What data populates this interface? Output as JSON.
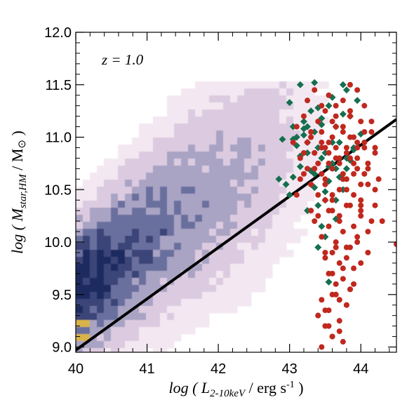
{
  "chart_data": {
    "type": "scatter",
    "annotation": "z = 1.0",
    "xlabel": {
      "prefix": "log ( ",
      "symbol": "L",
      "subscript": "2-10keV",
      "unit": " / erg s",
      "superscript": "-1",
      "suffix": " )"
    },
    "ylabel": {
      "prefix": "log ( ",
      "symbol": "M",
      "subscript": "star,HM",
      "unit": " / M",
      "sun": "⊙",
      "suffix": " )"
    },
    "xlim": [
      40.0,
      44.5
    ],
    "ylim": [
      8.95,
      12.0
    ],
    "x_ticks": [
      "40",
      "41",
      "42",
      "43",
      "44"
    ],
    "y_ticks": [
      "9.0",
      "9.5",
      "10.0",
      "10.5",
      "11.0",
      "11.5",
      "12.0"
    ],
    "relation_line": {
      "x": [
        40.0,
        44.5
      ],
      "y": [
        8.97,
        11.17
      ],
      "color": "#000000"
    },
    "density_colors": [
      "#f3e8f1",
      "#dccbe0",
      "#a9a3c4",
      "#6b6f9e",
      "#3a4478",
      "#1c2960",
      "#d8b34a"
    ],
    "green_diamonds": {
      "color": "#156f4f",
      "x": [
        42.9,
        42.95,
        43.0,
        43.05,
        43.1,
        43.15,
        43.2,
        43.25,
        43.3,
        43.35,
        43.4,
        43.45,
        43.5,
        43.55,
        43.6,
        43.65,
        43.7,
        43.75,
        43.8,
        43.85,
        43.9,
        43.95,
        44.0,
        42.85,
        43.05,
        43.15,
        43.25,
        43.35,
        43.45,
        43.55,
        43.65,
        43.75,
        43.85,
        43.0,
        43.1,
        43.2,
        43.3,
        43.4,
        43.5,
        43.6,
        43.7,
        43.8,
        43.9,
        43.15,
        43.25,
        43.35,
        43.45,
        43.55,
        43.65,
        43.75,
        43.05,
        43.2,
        43.4,
        43.6,
        43.8,
        43.3,
        43.5,
        43.45,
        43.4,
        43.55,
        43.65,
        43.35,
        43.25,
        43.5
      ],
      "y": [
        10.98,
        10.55,
        11.33,
        11.1,
        11.0,
        10.82,
        11.08,
        10.95,
        11.25,
        11.05,
        10.9,
        11.18,
        10.85,
        11.3,
        10.75,
        11.1,
        10.95,
        11.5,
        10.8,
        11.2,
        10.88,
        11.35,
        11.03,
        10.6,
        10.62,
        10.72,
        10.85,
        10.65,
        10.8,
        10.58,
        10.7,
        10.5,
        10.78,
        10.45,
        10.92,
        11.15,
        10.68,
        11.28,
        10.4,
        11.38,
        10.62,
        11.45,
        10.9,
        11.5,
        10.3,
        10.52,
        11.12,
        10.72,
        10.22,
        11.22,
        10.98,
        11.02,
        10.35,
        10.95,
        10.7,
        10.55,
        10.48,
        10.15,
        9.95,
        9.62,
        10.4,
        11.52,
        11.1,
        10.05
      ]
    },
    "red_circles": {
      "color": "#c0281e",
      "x": [
        43.05,
        43.1,
        43.15,
        43.2,
        43.25,
        43.3,
        43.35,
        43.4,
        43.45,
        43.5,
        43.55,
        43.6,
        43.65,
        43.7,
        43.75,
        43.8,
        43.85,
        43.9,
        43.95,
        44.0,
        44.05,
        44.1,
        44.15,
        44.2,
        44.25,
        43.2,
        43.3,
        43.4,
        43.5,
        43.6,
        43.7,
        43.8,
        43.9,
        44.0,
        44.1,
        44.2,
        43.25,
        43.35,
        43.45,
        43.55,
        43.65,
        43.75,
        43.85,
        43.95,
        44.05,
        44.15,
        43.3,
        43.4,
        43.5,
        43.6,
        43.7,
        43.8,
        43.9,
        44.0,
        44.1,
        43.35,
        43.45,
        43.55,
        43.65,
        43.75,
        43.85,
        43.95,
        44.05,
        43.4,
        43.5,
        43.6,
        43.7,
        43.8,
        43.9,
        44.0,
        43.45,
        43.55,
        43.65,
        43.75,
        43.85,
        43.95,
        43.5,
        43.6,
        43.7,
        43.8,
        43.9,
        43.55,
        43.65,
        43.75,
        43.85,
        43.6,
        43.7,
        43.8,
        43.4,
        43.5,
        43.6,
        43.7,
        43.3,
        43.45,
        43.55,
        43.65,
        43.75,
        43.85,
        43.95,
        44.05,
        43.35,
        43.5,
        43.65,
        43.8,
        43.95,
        44.1,
        43.25,
        43.45,
        43.6,
        43.75,
        43.9,
        44.05,
        44.2,
        43.35,
        43.55,
        43.7,
        43.85,
        44.0,
        44.15,
        43.5,
        43.65,
        43.8,
        43.95,
        44.1,
        43.6,
        43.75,
        43.9,
        44.0,
        43.7,
        43.85,
        43.5,
        43.65,
        43.8,
        43.4,
        43.55,
        43.7,
        43.45,
        43.6,
        43.75,
        43.55,
        43.45,
        43.6,
        43.85,
        44.0,
        44.2,
        44.5,
        44.3,
        43.2,
        43.15,
        43.1
      ],
      "y": [
        10.95,
        11.1,
        10.8,
        11.2,
        10.95,
        11.05,
        10.7,
        11.15,
        10.9,
        11.25,
        10.85,
        11.0,
        11.3,
        10.75,
        11.1,
        10.9,
        11.2,
        11.0,
        10.8,
        11.15,
        10.95,
        10.7,
        11.05,
        10.85,
        10.6,
        10.65,
        10.55,
        10.75,
        10.6,
        10.45,
        10.8,
        10.5,
        10.65,
        10.4,
        10.55,
        10.35,
        11.35,
        11.45,
        11.3,
        11.4,
        11.2,
        11.35,
        11.25,
        11.45,
        11.3,
        11.15,
        10.3,
        10.25,
        10.4,
        10.3,
        10.2,
        10.35,
        10.15,
        10.25,
        10.1,
        10.85,
        10.95,
        10.75,
        10.9,
        10.65,
        10.8,
        10.7,
        10.9,
        10.45,
        10.55,
        10.4,
        10.5,
        10.6,
        10.45,
        10.55,
        10.05,
        10.15,
        10.0,
        10.1,
        9.95,
        10.05,
        9.85,
        9.9,
        9.8,
        9.95,
        9.75,
        9.7,
        9.6,
        9.65,
        9.55,
        9.5,
        9.45,
        9.4,
        9.3,
        9.2,
        9.1,
        9.25,
        11.0,
        11.05,
        10.95,
        11.1,
        11.05,
        11.0,
        10.95,
        11.05,
        10.85,
        10.9,
        10.8,
        10.85,
        10.9,
        10.75,
        10.7,
        10.65,
        10.7,
        10.6,
        10.75,
        10.65,
        10.5,
        10.2,
        10.3,
        10.25,
        10.35,
        10.3,
        10.2,
        9.9,
        9.95,
        9.85,
        10.0,
        9.9,
        9.7,
        9.75,
        9.6,
        9.8,
        9.45,
        9.55,
        9.35,
        9.5,
        9.4,
        9.3,
        9.2,
        9.15,
        9.0,
        9.1,
        9.05,
        9.35,
        9.45,
        11.15,
        11.5,
        10.35,
        10.9,
        9.98,
        10.2,
        10.85,
        10.6,
        10.45
      ]
    }
  }
}
